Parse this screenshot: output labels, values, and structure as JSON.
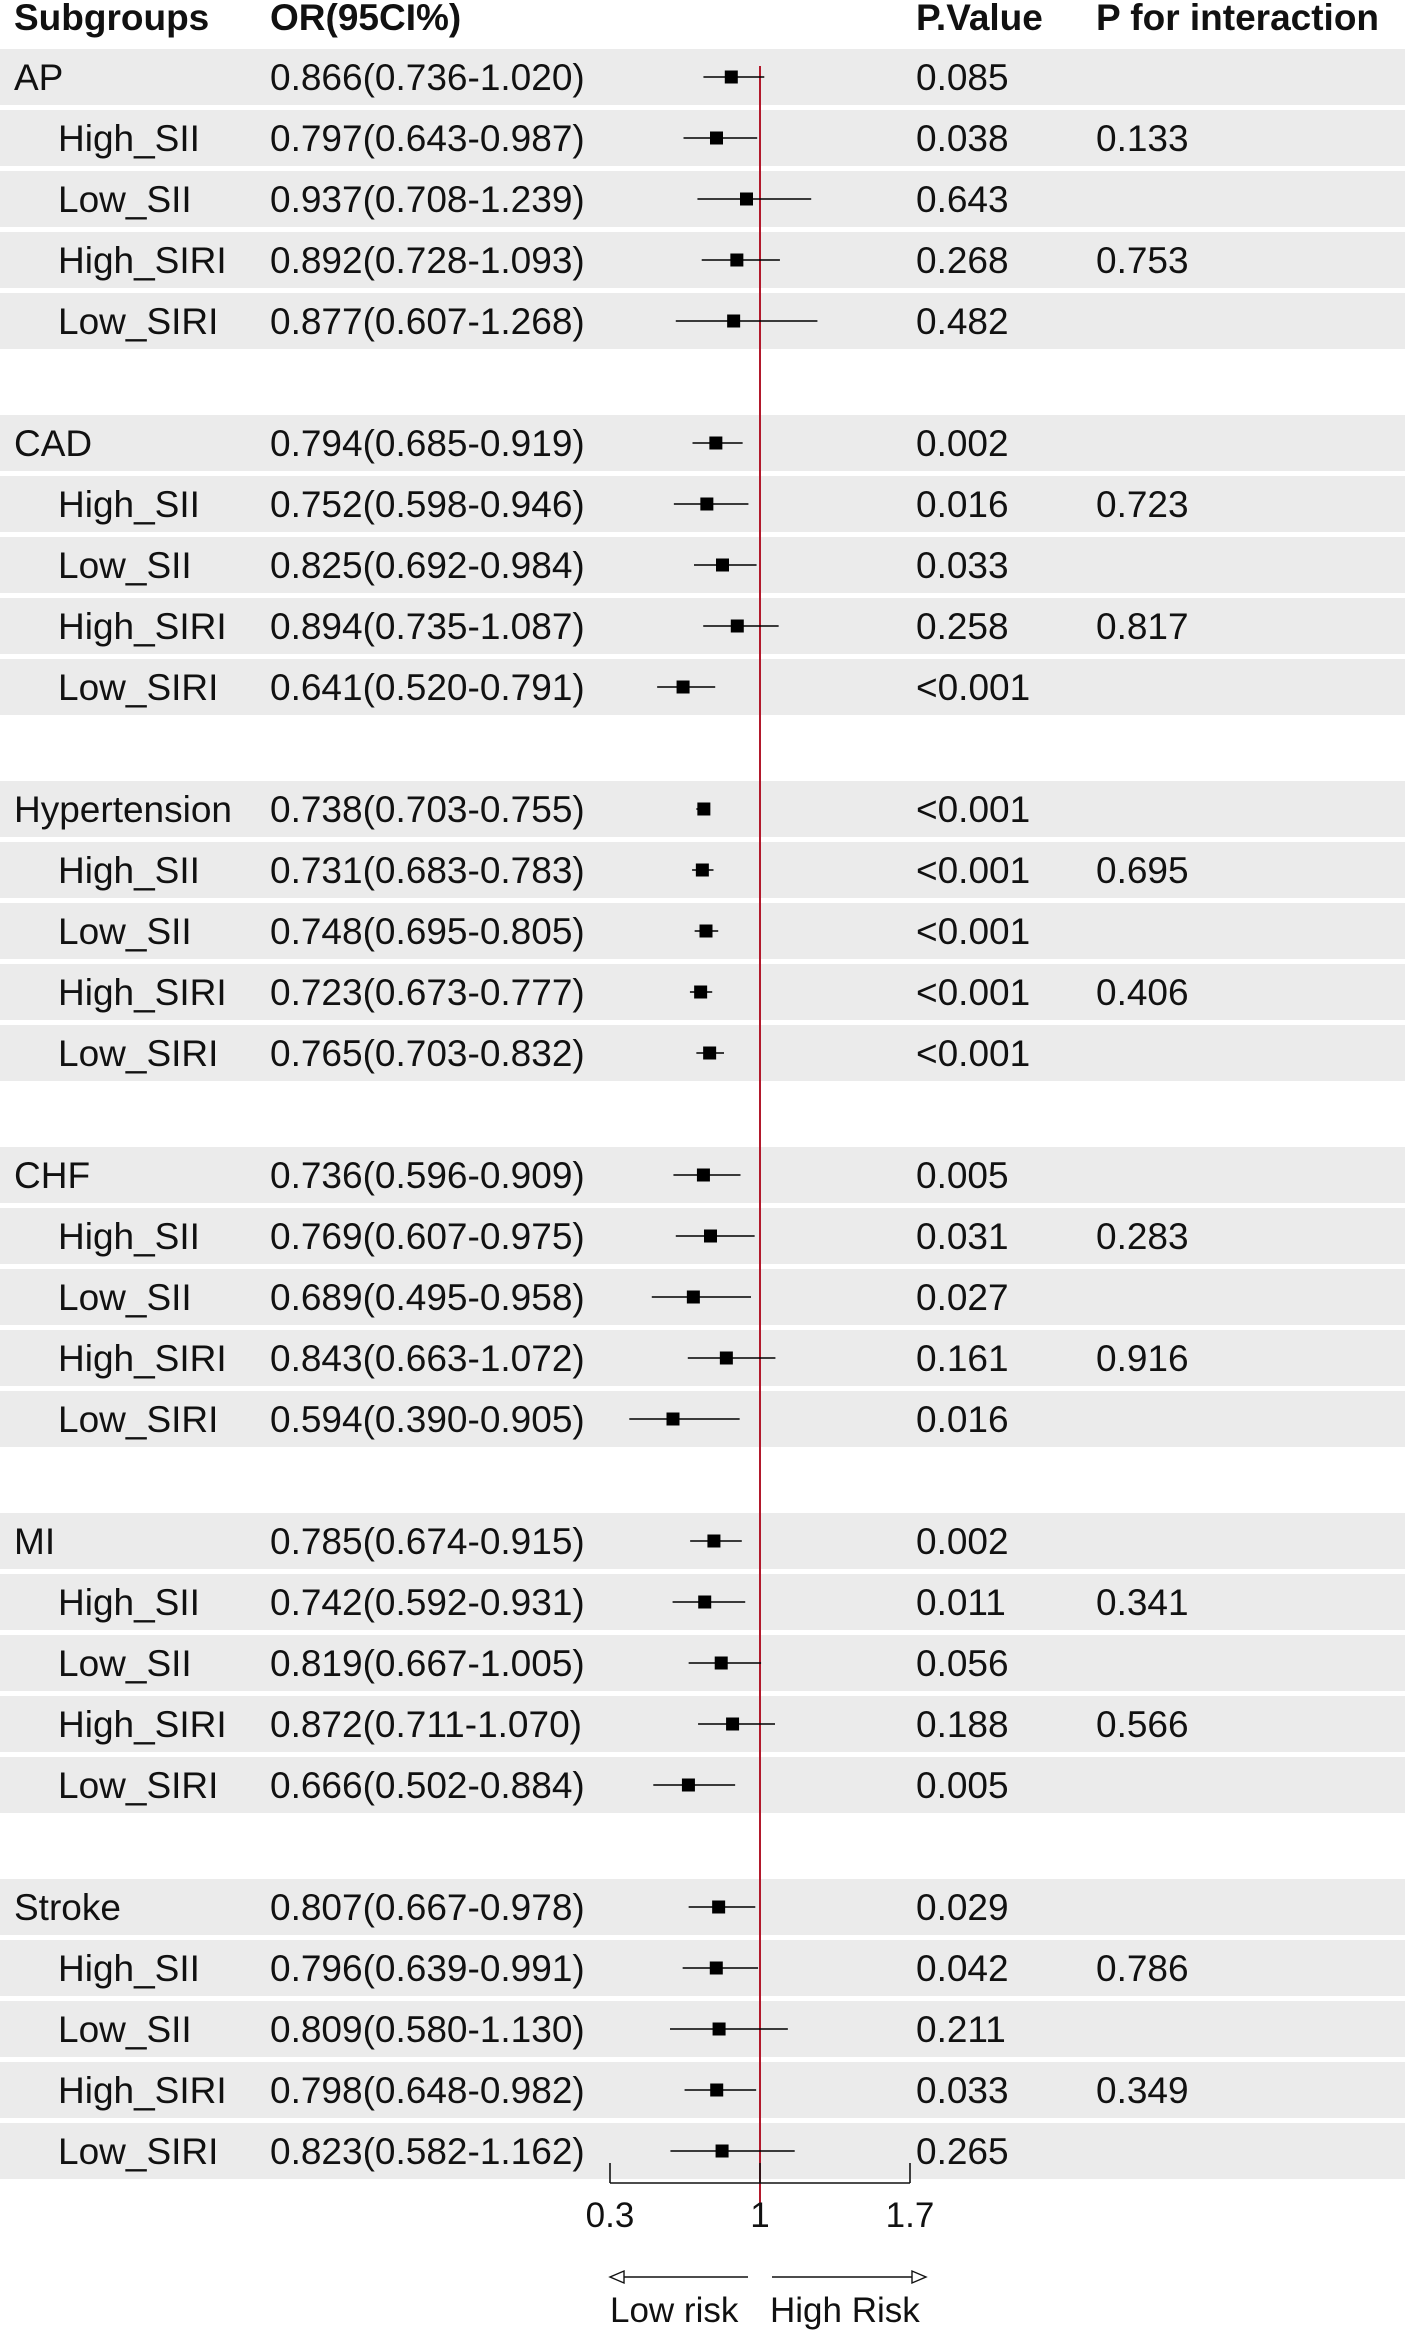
{
  "headers": {
    "subgroups": "Subgroups",
    "or": "OR(95CI%)",
    "pvalue": "P.Value",
    "pinteraction": "P for interaction"
  },
  "axis": {
    "ticks": [
      0.3,
      1,
      1.7
    ],
    "tick_labels": [
      "0.3",
      "1",
      "1.7"
    ],
    "reference_line": 1,
    "low_label": "Low risk",
    "high_label": "High Risk"
  },
  "colors": {
    "band": "#ebebeb",
    "reference_line": "#b2182b",
    "marker": "#000000",
    "text": "#111111"
  },
  "rows": [
    {
      "label": "AP",
      "indent": false,
      "or_text": "0.866(0.736-1.020)",
      "p": "0.085",
      "pint": ""
    },
    {
      "label": "High_SII",
      "indent": true,
      "or_text": "0.797(0.643-0.987)",
      "p": "0.038",
      "pint": "0.133"
    },
    {
      "label": "Low_SII",
      "indent": true,
      "or_text": "0.937(0.708-1.239)",
      "p": "0.643",
      "pint": ""
    },
    {
      "label": "High_SIRI",
      "indent": true,
      "or_text": "0.892(0.728-1.093)",
      "p": "0.268",
      "pint": "0.753"
    },
    {
      "label": "Low_SIRI",
      "indent": true,
      "or_text": "0.877(0.607-1.268)",
      "p": "0.482",
      "pint": ""
    },
    {
      "label": "",
      "indent": false,
      "or_text": "",
      "p": "",
      "pint": ""
    },
    {
      "label": "CAD",
      "indent": false,
      "or_text": "0.794(0.685-0.919)",
      "p": "0.002",
      "pint": ""
    },
    {
      "label": "High_SII",
      "indent": true,
      "or_text": "0.752(0.598-0.946)",
      "p": "0.016",
      "pint": "0.723"
    },
    {
      "label": "Low_SII",
      "indent": true,
      "or_text": "0.825(0.692-0.984)",
      "p": "0.033",
      "pint": ""
    },
    {
      "label": "High_SIRI",
      "indent": true,
      "or_text": "0.894(0.735-1.087)",
      "p": "0.258",
      "pint": "0.817"
    },
    {
      "label": "Low_SIRI",
      "indent": true,
      "or_text": "0.641(0.520-0.791)",
      "p": "<0.001",
      "pint": ""
    },
    {
      "label": "",
      "indent": false,
      "or_text": "",
      "p": "",
      "pint": ""
    },
    {
      "label": "Hypertension",
      "indent": false,
      "or_text": "0.738(0.703-0.755)",
      "p": "<0.001",
      "pint": ""
    },
    {
      "label": "High_SII",
      "indent": true,
      "or_text": "0.731(0.683-0.783)",
      "p": "<0.001",
      "pint": "0.695"
    },
    {
      "label": "Low_SII",
      "indent": true,
      "or_text": "0.748(0.695-0.805)",
      "p": "<0.001",
      "pint": ""
    },
    {
      "label": "High_SIRI",
      "indent": true,
      "or_text": "0.723(0.673-0.777)",
      "p": "<0.001",
      "pint": "0.406"
    },
    {
      "label": "Low_SIRI",
      "indent": true,
      "or_text": "0.765(0.703-0.832)",
      "p": "<0.001",
      "pint": ""
    },
    {
      "label": "",
      "indent": false,
      "or_text": "",
      "p": "",
      "pint": ""
    },
    {
      "label": "CHF",
      "indent": false,
      "or_text": "0.736(0.596-0.909)",
      "p": "0.005",
      "pint": ""
    },
    {
      "label": "High_SII",
      "indent": true,
      "or_text": "0.769(0.607-0.975)",
      "p": "0.031",
      "pint": "0.283"
    },
    {
      "label": "Low_SII",
      "indent": true,
      "or_text": "0.689(0.495-0.958)",
      "p": "0.027",
      "pint": ""
    },
    {
      "label": "High_SIRI",
      "indent": true,
      "or_text": "0.843(0.663-1.072)",
      "p": "0.161",
      "pint": "0.916"
    },
    {
      "label": "Low_SIRI",
      "indent": true,
      "or_text": "0.594(0.390-0.905)",
      "p": "0.016",
      "pint": ""
    },
    {
      "label": "",
      "indent": false,
      "or_text": "",
      "p": "",
      "pint": ""
    },
    {
      "label": "MI",
      "indent": false,
      "or_text": "0.785(0.674-0.915)",
      "p": "0.002",
      "pint": ""
    },
    {
      "label": "High_SII",
      "indent": true,
      "or_text": "0.742(0.592-0.931)",
      "p": "0.011",
      "pint": "0.341"
    },
    {
      "label": "Low_SII",
      "indent": true,
      "or_text": "0.819(0.667-1.005)",
      "p": "0.056",
      "pint": ""
    },
    {
      "label": "High_SIRI",
      "indent": true,
      "or_text": "0.872(0.711-1.070)",
      "p": "0.188",
      "pint": "0.566"
    },
    {
      "label": "Low_SIRI",
      "indent": true,
      "or_text": "0.666(0.502-0.884)",
      "p": "0.005",
      "pint": ""
    },
    {
      "label": "",
      "indent": false,
      "or_text": "",
      "p": "",
      "pint": ""
    },
    {
      "label": "Stroke",
      "indent": false,
      "or_text": "0.807(0.667-0.978)",
      "p": "0.029",
      "pint": ""
    },
    {
      "label": "High_SII",
      "indent": true,
      "or_text": "0.796(0.639-0.991)",
      "p": "0.042",
      "pint": "0.786"
    },
    {
      "label": "Low_SII",
      "indent": true,
      "or_text": "0.809(0.580-1.130)",
      "p": "0.211",
      "pint": ""
    },
    {
      "label": "High_SIRI",
      "indent": true,
      "or_text": "0.798(0.648-0.982)",
      "p": "0.033",
      "pint": "0.349"
    },
    {
      "label": "Low_SIRI",
      "indent": true,
      "or_text": "0.823(0.582-1.162)",
      "p": "0.265",
      "pint": ""
    }
  ],
  "chart_data": {
    "type": "forest",
    "xlabel": "",
    "xlim": [
      0.3,
      1.7
    ],
    "xticks": [
      0.3,
      1,
      1.7
    ],
    "reference": 1,
    "grid": false,
    "series": [
      {
        "group": "AP",
        "subgroup": "",
        "or": 0.866,
        "lower": 0.736,
        "upper": 1.02,
        "p": "0.085",
        "p_interaction": ""
      },
      {
        "group": "AP",
        "subgroup": "High_SII",
        "or": 0.797,
        "lower": 0.643,
        "upper": 0.987,
        "p": "0.038",
        "p_interaction": "0.133"
      },
      {
        "group": "AP",
        "subgroup": "Low_SII",
        "or": 0.937,
        "lower": 0.708,
        "upper": 1.239,
        "p": "0.643",
        "p_interaction": ""
      },
      {
        "group": "AP",
        "subgroup": "High_SIRI",
        "or": 0.892,
        "lower": 0.728,
        "upper": 1.093,
        "p": "0.268",
        "p_interaction": "0.753"
      },
      {
        "group": "AP",
        "subgroup": "Low_SIRI",
        "or": 0.877,
        "lower": 0.607,
        "upper": 1.268,
        "p": "0.482",
        "p_interaction": ""
      },
      {
        "group": "CAD",
        "subgroup": "",
        "or": 0.794,
        "lower": 0.685,
        "upper": 0.919,
        "p": "0.002",
        "p_interaction": ""
      },
      {
        "group": "CAD",
        "subgroup": "High_SII",
        "or": 0.752,
        "lower": 0.598,
        "upper": 0.946,
        "p": "0.016",
        "p_interaction": "0.723"
      },
      {
        "group": "CAD",
        "subgroup": "Low_SII",
        "or": 0.825,
        "lower": 0.692,
        "upper": 0.984,
        "p": "0.033",
        "p_interaction": ""
      },
      {
        "group": "CAD",
        "subgroup": "High_SIRI",
        "or": 0.894,
        "lower": 0.735,
        "upper": 1.087,
        "p": "0.258",
        "p_interaction": "0.817"
      },
      {
        "group": "CAD",
        "subgroup": "Low_SIRI",
        "or": 0.641,
        "lower": 0.52,
        "upper": 0.791,
        "p": "<0.001",
        "p_interaction": ""
      },
      {
        "group": "Hypertension",
        "subgroup": "",
        "or": 0.738,
        "lower": 0.703,
        "upper": 0.755,
        "p": "<0.001",
        "p_interaction": ""
      },
      {
        "group": "Hypertension",
        "subgroup": "High_SII",
        "or": 0.731,
        "lower": 0.683,
        "upper": 0.783,
        "p": "<0.001",
        "p_interaction": "0.695"
      },
      {
        "group": "Hypertension",
        "subgroup": "Low_SII",
        "or": 0.748,
        "lower": 0.695,
        "upper": 0.805,
        "p": "<0.001",
        "p_interaction": ""
      },
      {
        "group": "Hypertension",
        "subgroup": "High_SIRI",
        "or": 0.723,
        "lower": 0.673,
        "upper": 0.777,
        "p": "<0.001",
        "p_interaction": "0.406"
      },
      {
        "group": "Hypertension",
        "subgroup": "Low_SIRI",
        "or": 0.765,
        "lower": 0.703,
        "upper": 0.832,
        "p": "<0.001",
        "p_interaction": ""
      },
      {
        "group": "CHF",
        "subgroup": "",
        "or": 0.736,
        "lower": 0.596,
        "upper": 0.909,
        "p": "0.005",
        "p_interaction": ""
      },
      {
        "group": "CHF",
        "subgroup": "High_SII",
        "or": 0.769,
        "lower": 0.607,
        "upper": 0.975,
        "p": "0.031",
        "p_interaction": "0.283"
      },
      {
        "group": "CHF",
        "subgroup": "Low_SII",
        "or": 0.689,
        "lower": 0.495,
        "upper": 0.958,
        "p": "0.027",
        "p_interaction": ""
      },
      {
        "group": "CHF",
        "subgroup": "High_SIRI",
        "or": 0.843,
        "lower": 0.663,
        "upper": 1.072,
        "p": "0.161",
        "p_interaction": "0.916"
      },
      {
        "group": "CHF",
        "subgroup": "Low_SIRI",
        "or": 0.594,
        "lower": 0.39,
        "upper": 0.905,
        "p": "0.016",
        "p_interaction": ""
      },
      {
        "group": "MI",
        "subgroup": "",
        "or": 0.785,
        "lower": 0.674,
        "upper": 0.915,
        "p": "0.002",
        "p_interaction": ""
      },
      {
        "group": "MI",
        "subgroup": "High_SII",
        "or": 0.742,
        "lower": 0.592,
        "upper": 0.931,
        "p": "0.011",
        "p_interaction": "0.341"
      },
      {
        "group": "MI",
        "subgroup": "Low_SII",
        "or": 0.819,
        "lower": 0.667,
        "upper": 1.005,
        "p": "0.056",
        "p_interaction": ""
      },
      {
        "group": "MI",
        "subgroup": "High_SIRI",
        "or": 0.872,
        "lower": 0.711,
        "upper": 1.07,
        "p": "0.188",
        "p_interaction": "0.566"
      },
      {
        "group": "MI",
        "subgroup": "Low_SIRI",
        "or": 0.666,
        "lower": 0.502,
        "upper": 0.884,
        "p": "0.005",
        "p_interaction": ""
      },
      {
        "group": "Stroke",
        "subgroup": "",
        "or": 0.807,
        "lower": 0.667,
        "upper": 0.978,
        "p": "0.029",
        "p_interaction": ""
      },
      {
        "group": "Stroke",
        "subgroup": "High_SII",
        "or": 0.796,
        "lower": 0.639,
        "upper": 0.991,
        "p": "0.042",
        "p_interaction": "0.786"
      },
      {
        "group": "Stroke",
        "subgroup": "Low_SII",
        "or": 0.809,
        "lower": 0.58,
        "upper": 1.13,
        "p": "0.211",
        "p_interaction": ""
      },
      {
        "group": "Stroke",
        "subgroup": "High_SIRI",
        "or": 0.798,
        "lower": 0.648,
        "upper": 0.982,
        "p": "0.033",
        "p_interaction": "0.349"
      },
      {
        "group": "Stroke",
        "subgroup": "Low_SIRI",
        "or": 0.823,
        "lower": 0.582,
        "upper": 1.162,
        "p": "0.265",
        "p_interaction": ""
      }
    ]
  }
}
